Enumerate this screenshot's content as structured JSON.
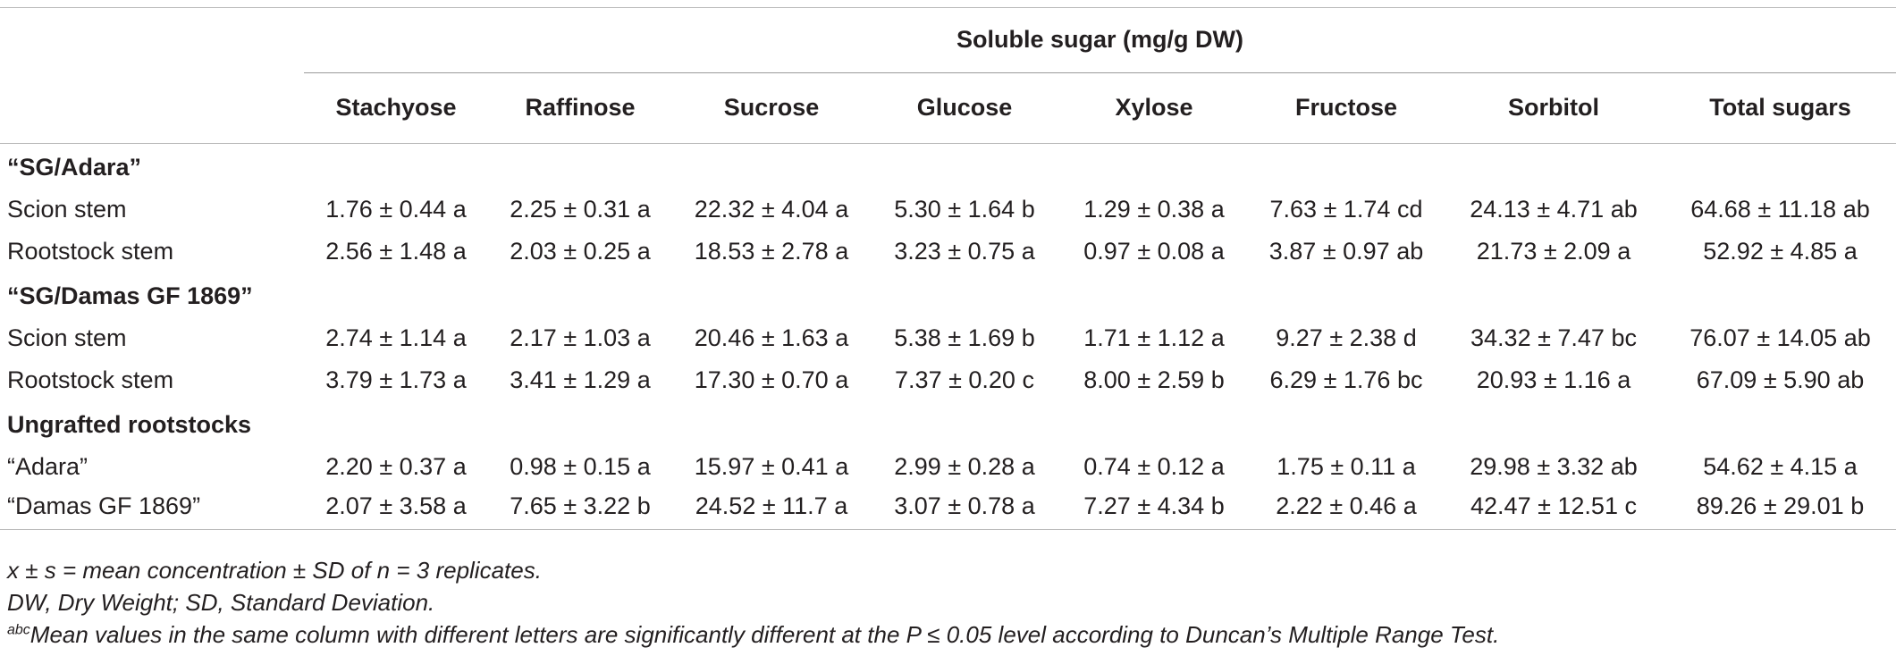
{
  "table": {
    "group_header": "Soluble sugar (mg/g DW)",
    "columns": [
      "Stachyose",
      "Raffinose",
      "Sucrose",
      "Glucose",
      "Xylose",
      "Fructose",
      "Sorbitol",
      "Total sugars"
    ],
    "sections": [
      {
        "title": "“SG/Adara”",
        "rows": [
          {
            "label": "Scion stem",
            "cells": [
              "1.76 ± 0.44 a",
              "2.25 ± 0.31 a",
              "22.32 ± 4.04 a",
              "5.30 ± 1.64 b",
              "1.29 ± 0.38 a",
              "7.63 ± 1.74 cd",
              "24.13 ± 4.71 ab",
              "64.68 ± 11.18 ab"
            ]
          },
          {
            "label": "Rootstock stem",
            "cells": [
              "2.56 ± 1.48 a",
              "2.03 ± 0.25 a",
              "18.53 ± 2.78 a",
              "3.23 ± 0.75 a",
              "0.97 ± 0.08 a",
              "3.87 ± 0.97 ab",
              "21.73 ± 2.09 a",
              "52.92 ± 4.85 a"
            ]
          }
        ]
      },
      {
        "title": "“SG/Damas GF 1869”",
        "rows": [
          {
            "label": "Scion stem",
            "cells": [
              "2.74 ± 1.14 a",
              "2.17 ± 1.03 a",
              "20.46 ± 1.63 a",
              "5.38 ± 1.69 b",
              "1.71 ± 1.12 a",
              "9.27 ± 2.38 d",
              "34.32 ± 7.47 bc",
              "76.07 ± 14.05 ab"
            ]
          },
          {
            "label": "Rootstock stem",
            "cells": [
              "3.79 ± 1.73 a",
              "3.41 ± 1.29 a",
              "17.30 ± 0.70 a",
              "7.37 ± 0.20 c",
              "8.00 ± 2.59 b",
              "6.29 ± 1.76 bc",
              "20.93 ± 1.16 a",
              "67.09 ± 5.90 ab"
            ]
          }
        ]
      },
      {
        "title": "Ungrafted rootstocks",
        "rows": [
          {
            "label": "“Adara”",
            "cells": [
              "2.20 ± 0.37 a",
              "0.98 ± 0.15 a",
              "15.97 ± 0.41 a",
              "2.99 ± 0.28 a",
              "0.74 ± 0.12 a",
              "1.75 ± 0.11 a",
              "29.98 ± 3.32 ab",
              "54.62 ± 4.15 a"
            ]
          },
          {
            "label": "“Damas GF 1869”",
            "cells": [
              "2.07 ± 3.58 a",
              "7.65 ± 3.22 b",
              "24.52 ± 11.7 a",
              "3.07 ± 0.78 a",
              "7.27 ± 4.34 b",
              "2.22 ± 0.46 a",
              "42.47 ± 12.51 c",
              "89.26 ± 29.01 b"
            ]
          }
        ]
      }
    ]
  },
  "footnotes": {
    "line1": "x ± s = mean concentration ± SD of n = 3 replicates.",
    "line2": "DW, Dry Weight; SD, Standard Deviation.",
    "line3_sup": "abc",
    "line3": "Mean values in the same column with different letters are significantly different at the P ≤ 0.05 level according to Duncan’s Multiple Range Test."
  }
}
